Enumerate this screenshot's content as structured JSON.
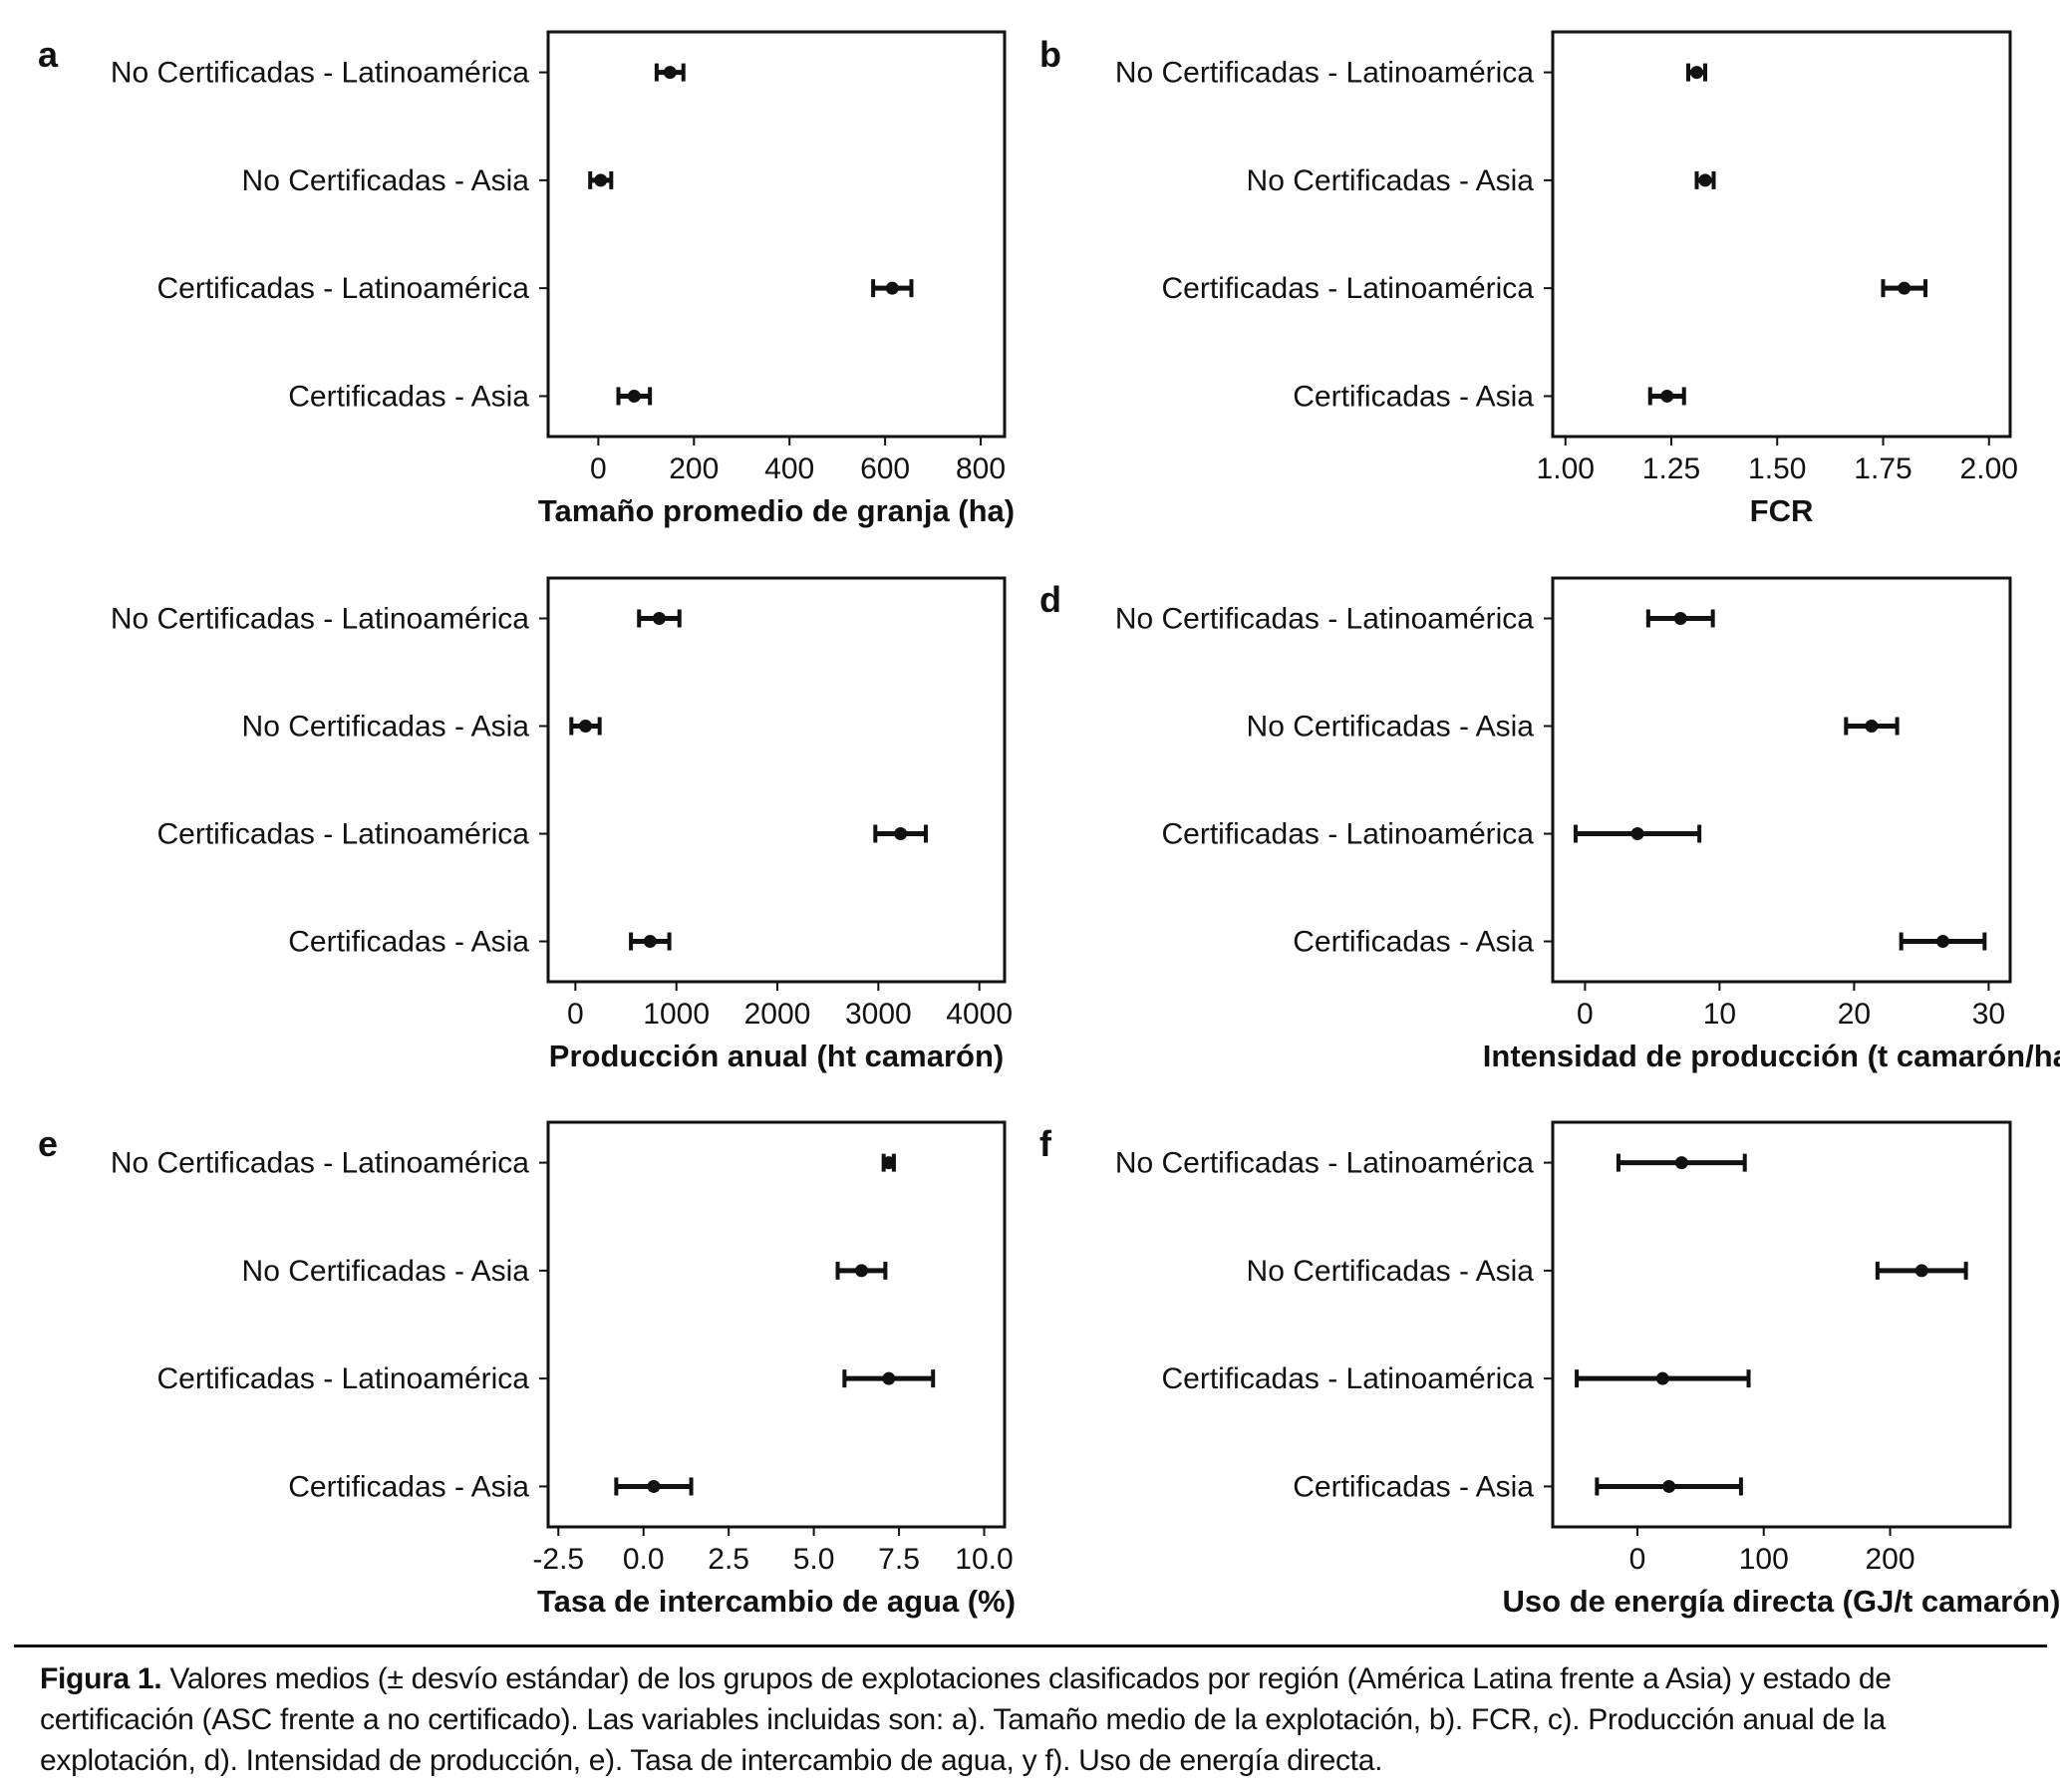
{
  "chart_data": [
    {
      "panel_label": "a",
      "type": "errorbar",
      "xlabel": "Tamaño promedio de granja (ha)",
      "categories": [
        "No Certificadas - Latinoamérica",
        "No Certificadas - Asia",
        "Certificadas - Latinoamérica",
        "Certificadas - Asia"
      ],
      "means": [
        150,
        5,
        615,
        75
      ],
      "sd": [
        28,
        22,
        40,
        33
      ],
      "xlim": [
        -105,
        850
      ],
      "ticks": [
        0,
        200,
        400,
        600,
        800
      ],
      "tick_labels": [
        "0",
        "200",
        "400",
        "600",
        "800"
      ]
    },
    {
      "panel_label": "b",
      "type": "errorbar",
      "xlabel": "FCR",
      "categories": [
        "No Certificadas - Latinoamérica",
        "No Certificadas - Asia",
        "Certificadas - Latinoamérica",
        "Certificadas - Asia"
      ],
      "means": [
        1.31,
        1.33,
        1.8,
        1.24
      ],
      "sd": [
        0.02,
        0.02,
        0.05,
        0.04
      ],
      "xlim": [
        0.97,
        2.05
      ],
      "ticks": [
        1.0,
        1.25,
        1.5,
        1.75,
        2.0
      ],
      "tick_labels": [
        "1.00",
        "1.25",
        "1.50",
        "1.75",
        "2.00"
      ]
    },
    {
      "panel_label": "c",
      "type": "errorbar",
      "xlabel": "Producción anual (ht camarón)",
      "categories": [
        "No Certificadas - Latinoamérica",
        "No Certificadas - Asia",
        "Certificadas - Latinoamérica",
        "Certificadas - Asia"
      ],
      "means": [
        830,
        100,
        3220,
        740
      ],
      "sd": [
        200,
        140,
        250,
        190
      ],
      "xlim": [
        -270,
        4250
      ],
      "ticks": [
        0,
        1000,
        2000,
        3000,
        4000
      ],
      "tick_labels": [
        "0",
        "1000",
        "2000",
        "3000",
        "4000"
      ]
    },
    {
      "panel_label": "d",
      "type": "errorbar",
      "xlabel": "Intensidad de producción (t camarón/ha)",
      "categories": [
        "No Certificadas - Latinoamérica",
        "No Certificadas - Asia",
        "Certificadas - Latinoamérica",
        "Certificadas - Asia"
      ],
      "means": [
        7.1,
        21.3,
        3.9,
        26.6
      ],
      "sd": [
        2.4,
        1.9,
        4.6,
        3.1
      ],
      "xlim": [
        -2.4,
        31.6
      ],
      "ticks": [
        0,
        10,
        20,
        30
      ],
      "tick_labels": [
        "0",
        "10",
        "20",
        "30"
      ]
    },
    {
      "panel_label": "e",
      "type": "errorbar",
      "xlabel": "Tasa de intercambio de agua (%)",
      "categories": [
        "No Certificadas - Latinoamérica",
        "No Certificadas - Asia",
        "Certificadas - Latinoamérica",
        "Certificadas - Asia"
      ],
      "means": [
        7.2,
        6.4,
        7.2,
        0.3
      ],
      "sd": [
        0.15,
        0.7,
        1.3,
        1.1
      ],
      "xlim": [
        -2.8,
        10.6
      ],
      "ticks": [
        -2.5,
        0,
        2.5,
        5.0,
        7.5,
        10.0
      ],
      "tick_labels": [
        "-2.5",
        "0.0",
        "2.5",
        "5.0",
        "7.5",
        "10.0"
      ]
    },
    {
      "panel_label": "f",
      "type": "errorbar",
      "xlabel": "Uso de energía directa (GJ/t camarón)",
      "categories": [
        "No Certificadas - Latinoamérica",
        "No Certificadas - Asia",
        "Certificadas - Latinoamérica",
        "Certificadas - Asia"
      ],
      "means": [
        35,
        225,
        20,
        25
      ],
      "sd": [
        50,
        35,
        68,
        57
      ],
      "xlim": [
        -67,
        295
      ],
      "ticks": [
        0,
        100,
        200
      ],
      "tick_labels": [
        "0",
        "100",
        "200"
      ]
    }
  ],
  "caption": {
    "label": "Figura 1.",
    "text": "Valores medios (± desvío estándar) de los grupos de explotaciones clasificados por región (América Latina frente a Asia) y estado de certificación (ASC frente a no certificado). Las variables incluidas son: a). Tamaño medio de la explotación, b). FCR, c). Producción anual de la explotación, d). Intensidad de producción, e). Tasa de intercambio de agua, y f). Uso de energía directa."
  },
  "colors": {
    "ink": "#111111",
    "background": "#ffffff"
  }
}
